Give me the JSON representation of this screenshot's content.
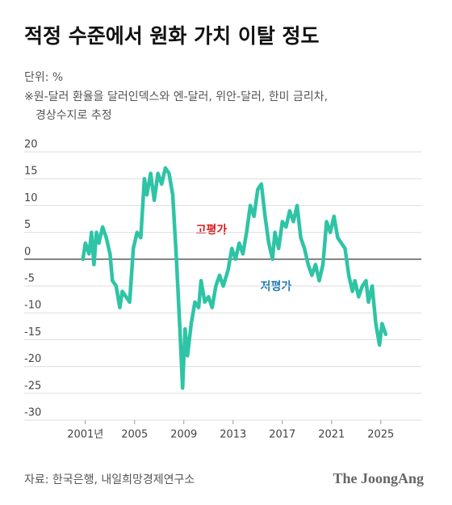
{
  "chart_data": {
    "type": "line",
    "title": "적정 수준에서 원화 가치 이탈 정도",
    "subtitle": [
      "단위: %",
      "※원-달러 환율을 달러인덱스와 엔-달러, 위안-달러, 한미 금리차,",
      "경상수지로 추정"
    ],
    "annotations": [
      {
        "text": "고평가",
        "color": "#d7191c"
      },
      {
        "text": "저평가",
        "color": "#1f78b4"
      }
    ],
    "source": "자료: 한국은행, 내일희망경제연구소",
    "brand": "The JoongAng",
    "xlim": [
      1998,
      2028
    ],
    "xticks": [
      {
        "value": 2001,
        "label": "2001년"
      },
      2005,
      2009,
      2013,
      2017,
      2021,
      2025
    ],
    "ylim": [
      -30,
      20
    ],
    "yticks": [
      20,
      15,
      10,
      5,
      0,
      -5,
      -10,
      -15,
      -20,
      -25,
      -30
    ],
    "grid": true,
    "series": [
      {
        "name": "이탈 정도",
        "color": "#2ec4a5",
        "x": [
          2000.8,
          2001.0,
          2001.3,
          2001.5,
          2001.7,
          2001.9,
          2002.1,
          2002.4,
          2002.7,
          2003.0,
          2003.2,
          2003.5,
          2003.8,
          2004.0,
          2004.3,
          2004.6,
          2004.9,
          2005.2,
          2005.5,
          2005.8,
          2006.0,
          2006.3,
          2006.6,
          2006.9,
          2007.2,
          2007.5,
          2007.8,
          2008.1,
          2008.4,
          2008.7,
          2008.9,
          2009.1,
          2009.3,
          2009.6,
          2009.9,
          2010.2,
          2010.4,
          2010.7,
          2011.0,
          2011.3,
          2011.6,
          2011.9,
          2012.2,
          2012.6,
          2012.9,
          2013.2,
          2013.5,
          2013.8,
          2014.1,
          2014.4,
          2014.7,
          2015.0,
          2015.3,
          2015.6,
          2015.9,
          2016.2,
          2016.4,
          2016.7,
          2017.0,
          2017.3,
          2017.6,
          2017.9,
          2018.2,
          2018.5,
          2018.8,
          2019.1,
          2019.4,
          2019.7,
          2020.0,
          2020.3,
          2020.6,
          2020.9,
          2021.2,
          2021.5,
          2021.8,
          2022.1,
          2022.4,
          2022.7,
          2022.9,
          2023.2,
          2023.5,
          2023.8,
          2024.0,
          2024.3,
          2024.6,
          2024.9,
          2025.1,
          2025.4
        ],
        "values": [
          0,
          3,
          1,
          5,
          -1,
          5,
          3,
          6,
          4,
          1,
          -4,
          -5,
          -9,
          -6,
          -7,
          -8,
          2,
          5,
          4,
          15,
          12,
          16,
          11,
          16,
          14,
          17,
          16,
          12,
          0,
          -14,
          -24,
          -13,
          -18,
          -12,
          -8,
          -9,
          -4,
          -8,
          -7,
          -9,
          -5,
          -3,
          -5,
          -2,
          2,
          0,
          3,
          1,
          5,
          10,
          8,
          13,
          14,
          8,
          3,
          0,
          5,
          2,
          7,
          6,
          9,
          7,
          10,
          4,
          2,
          -1,
          -3,
          -1,
          -4,
          -1,
          7,
          5,
          8,
          4,
          3,
          2,
          -3,
          -6,
          -4,
          -7,
          -5,
          -4,
          -8,
          -5,
          -12,
          -16,
          -12,
          -14
        ]
      }
    ]
  }
}
